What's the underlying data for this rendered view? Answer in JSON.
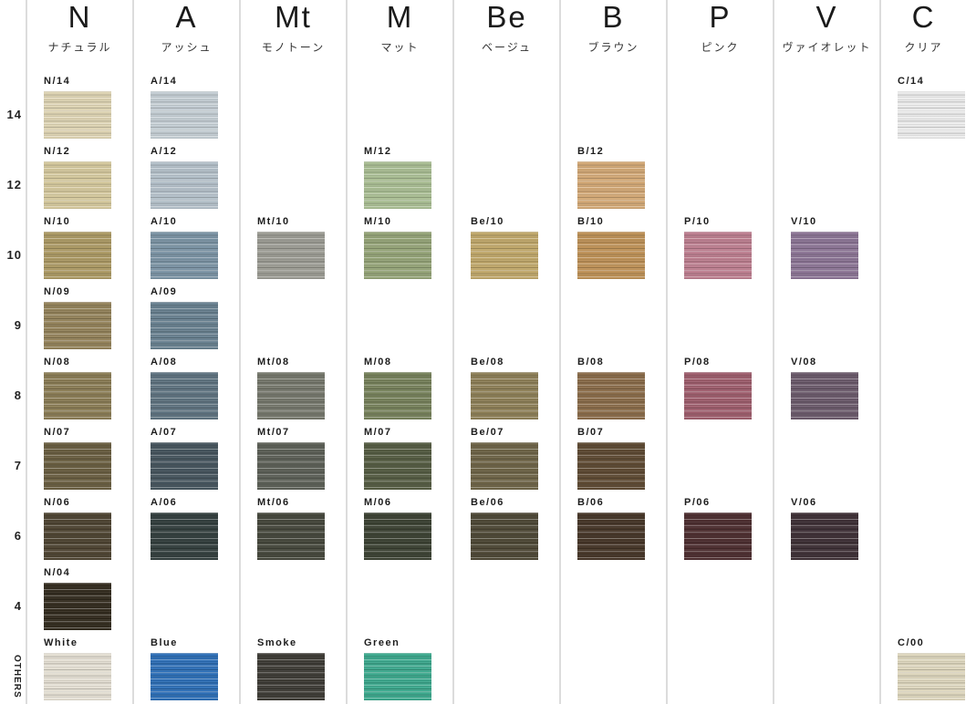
{
  "chart_data": {
    "type": "table",
    "rows": [
      {
        "key": "14",
        "label": "14"
      },
      {
        "key": "12",
        "label": "12"
      },
      {
        "key": "10",
        "label": "10"
      },
      {
        "key": "9",
        "label": "9"
      },
      {
        "key": "8",
        "label": "8"
      },
      {
        "key": "7",
        "label": "7"
      },
      {
        "key": "6",
        "label": "6"
      },
      {
        "key": "4",
        "label": "4"
      },
      {
        "key": "others",
        "label": "OTHERS"
      }
    ],
    "columns": [
      {
        "id": "N",
        "letter": "N",
        "subtitle": "ナチュラル",
        "swatches": {
          "14": {
            "code": "N/14",
            "color": "#ddd3b3"
          },
          "12": {
            "code": "N/12",
            "color": "#d4c89d"
          },
          "10": {
            "code": "N/10",
            "color": "#ab9964"
          },
          "9": {
            "code": "N/09",
            "color": "#93825a"
          },
          "8": {
            "code": "N/08",
            "color": "#8a7c55"
          },
          "7": {
            "code": "N/07",
            "color": "#695e41"
          },
          "6": {
            "code": "N/06",
            "color": "#4e4432"
          },
          "4": {
            "code": "N/04",
            "color": "#332c1f"
          },
          "others": {
            "code": "White",
            "color": "#e3ded2"
          }
        }
      },
      {
        "id": "A",
        "letter": "A",
        "subtitle": "アッシュ",
        "swatches": {
          "14": {
            "code": "A/14",
            "color": "#c4cdd3"
          },
          "12": {
            "code": "A/12",
            "color": "#b4c0c9"
          },
          "10": {
            "code": "A/10",
            "color": "#7b93a4"
          },
          "9": {
            "code": "A/09",
            "color": "#68808f"
          },
          "8": {
            "code": "A/08",
            "color": "#5f7380"
          },
          "7": {
            "code": "A/07",
            "color": "#46555e"
          },
          "6": {
            "code": "A/06",
            "color": "#333f3e"
          },
          "others": {
            "code": "Blue",
            "color": "#2e6fb6"
          }
        }
      },
      {
        "id": "Mt",
        "letter": "Mt",
        "subtitle": "モノトーン",
        "swatches": {
          "10": {
            "code": "Mt/10",
            "color": "#9b9b93"
          },
          "8": {
            "code": "Mt/08",
            "color": "#75776c"
          },
          "7": {
            "code": "Mt/07",
            "color": "#5c6057"
          },
          "6": {
            "code": "Mt/06",
            "color": "#45473c"
          },
          "others": {
            "code": "Smoke",
            "color": "#3e3c36"
          }
        }
      },
      {
        "id": "M",
        "letter": "M",
        "subtitle": "マット",
        "swatches": {
          "12": {
            "code": "M/12",
            "color": "#a9bd93"
          },
          "10": {
            "code": "M/10",
            "color": "#94a377"
          },
          "8": {
            "code": "M/08",
            "color": "#76815b"
          },
          "7": {
            "code": "M/07",
            "color": "#555c43"
          },
          "6": {
            "code": "M/06",
            "color": "#3c4233"
          },
          "others": {
            "code": "Green",
            "color": "#3da88d"
          }
        }
      },
      {
        "id": "Be",
        "letter": "Be",
        "subtitle": "ベージュ",
        "swatches": {
          "10": {
            "code": "Be/10",
            "color": "#bfa76a"
          },
          "8": {
            "code": "Be/08",
            "color": "#8d7f57"
          },
          "7": {
            "code": "Be/07",
            "color": "#6e6447"
          },
          "6": {
            "code": "Be/06",
            "color": "#4e4836"
          }
        }
      },
      {
        "id": "B",
        "letter": "B",
        "subtitle": "ブラウン",
        "swatches": {
          "12": {
            "code": "B/12",
            "color": "#d2a876"
          },
          "10": {
            "code": "B/10",
            "color": "#bd9157"
          },
          "8": {
            "code": "B/08",
            "color": "#8a6c4a"
          },
          "7": {
            "code": "B/07",
            "color": "#5e4a33"
          },
          "6": {
            "code": "B/06",
            "color": "#463628"
          }
        }
      },
      {
        "id": "P",
        "letter": "P",
        "subtitle": "ピンク",
        "swatches": {
          "10": {
            "code": "P/10",
            "color": "#bc7e8f"
          },
          "8": {
            "code": "P/08",
            "color": "#9e5e6d"
          },
          "6": {
            "code": "P/06",
            "color": "#4d2e30"
          }
        }
      },
      {
        "id": "V",
        "letter": "V",
        "subtitle": "ヴァイオレット",
        "swatches": {
          "10": {
            "code": "V/10",
            "color": "#8b7494"
          },
          "8": {
            "code": "V/08",
            "color": "#6b5a6b"
          },
          "6": {
            "code": "V/06",
            "color": "#3e3036"
          }
        }
      },
      {
        "id": "C",
        "letter": "C",
        "subtitle": "クリア",
        "swatches": {
          "14": {
            "code": "C/14",
            "color": "#eaeaea"
          },
          "others": {
            "code": "C/00",
            "color": "#ddd6bd"
          }
        }
      }
    ],
    "divider_color": "#dcdcdc"
  }
}
